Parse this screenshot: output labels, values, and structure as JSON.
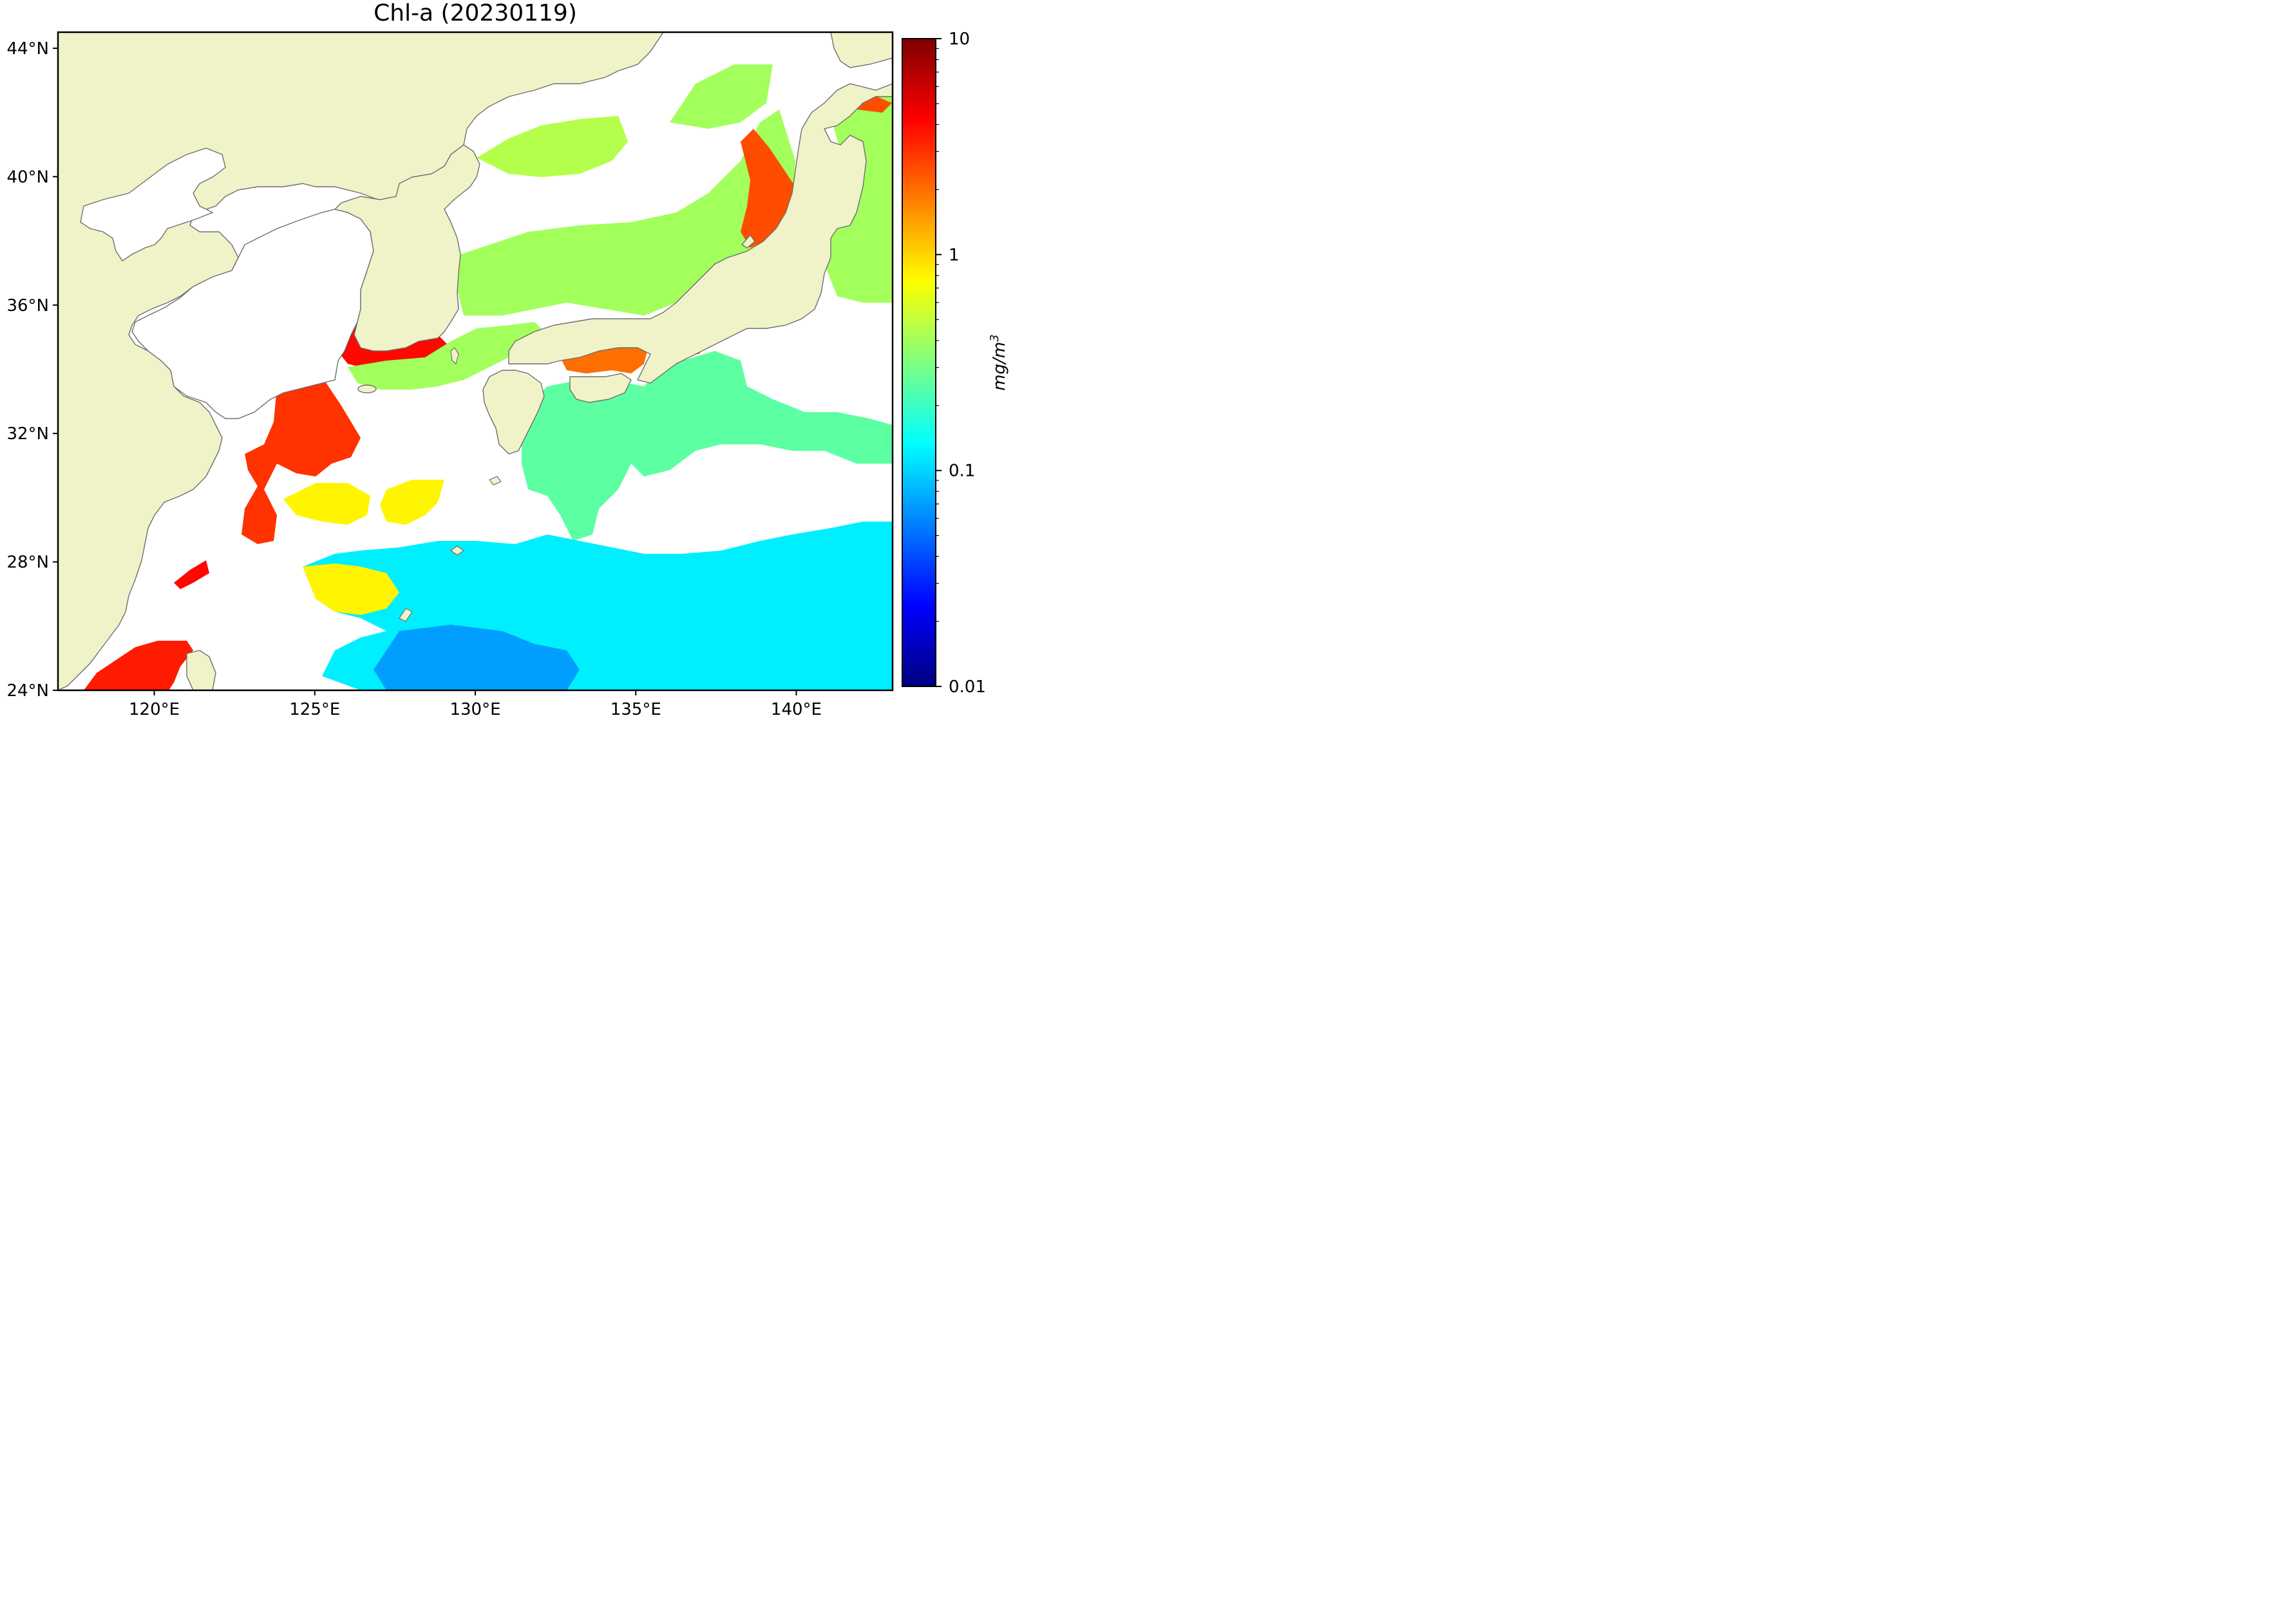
{
  "title": "Chl-a (20230119)",
  "map": {
    "lon_range": [
      117,
      143
    ],
    "lat_range": [
      24,
      44.5
    ],
    "land_color": "#f0f3c8",
    "coast_color": "#6e6e6e",
    "no_data_color": "#ffffff",
    "lon_ticks": [
      {
        "value": 120,
        "label": "120°E"
      },
      {
        "value": 125,
        "label": "125°E"
      },
      {
        "value": 130,
        "label": "130°E"
      },
      {
        "value": 135,
        "label": "135°E"
      },
      {
        "value": 140,
        "label": "140°E"
      }
    ],
    "lat_ticks": [
      {
        "value": 44,
        "label": "44°N"
      },
      {
        "value": 40,
        "label": "40°N"
      },
      {
        "value": 36,
        "label": "36°N"
      },
      {
        "value": 32,
        "label": "32°N"
      },
      {
        "value": 28,
        "label": "28°N"
      },
      {
        "value": 24,
        "label": "24°N"
      }
    ]
  },
  "colorbar": {
    "scale": "log",
    "range": [
      0.01,
      10
    ],
    "unit": "mg/m",
    "unit_sup": "3",
    "colormap": "jet",
    "colormap_stops": [
      "#00007f",
      "#0000ff",
      "#007fff",
      "#00ffff",
      "#7fff7f",
      "#ffff00",
      "#ff7f00",
      "#ff0000",
      "#7f0000"
    ],
    "tick_labels": [
      {
        "value": 10,
        "label": "10"
      },
      {
        "value": 1,
        "label": "1"
      },
      {
        "value": 0.1,
        "label": "0.1"
      },
      {
        "value": 0.01,
        "label": "0.01"
      }
    ]
  },
  "data_regions": [
    {
      "name": "east-sea-north",
      "level": 0.45
    },
    {
      "name": "east-sea-central",
      "level": 0.4
    },
    {
      "name": "japan-west-coast",
      "level": 2.5
    },
    {
      "name": "east-china-sea-river-plume",
      "level": 3.0
    },
    {
      "name": "korea-southwest-coast",
      "level": 4.0
    },
    {
      "name": "korea-strait",
      "level": 0.4
    },
    {
      "name": "seto-inland-sea",
      "level": 2.0
    },
    {
      "name": "pacific-south-of-japan",
      "level": 0.25
    },
    {
      "name": "pacific-offshore",
      "level": 0.12
    },
    {
      "name": "philippine-sea",
      "level": 0.07
    },
    {
      "name": "taiwan-strait",
      "level": 3.5
    },
    {
      "name": "east-china-sea-shelf",
      "level": 0.8
    }
  ]
}
